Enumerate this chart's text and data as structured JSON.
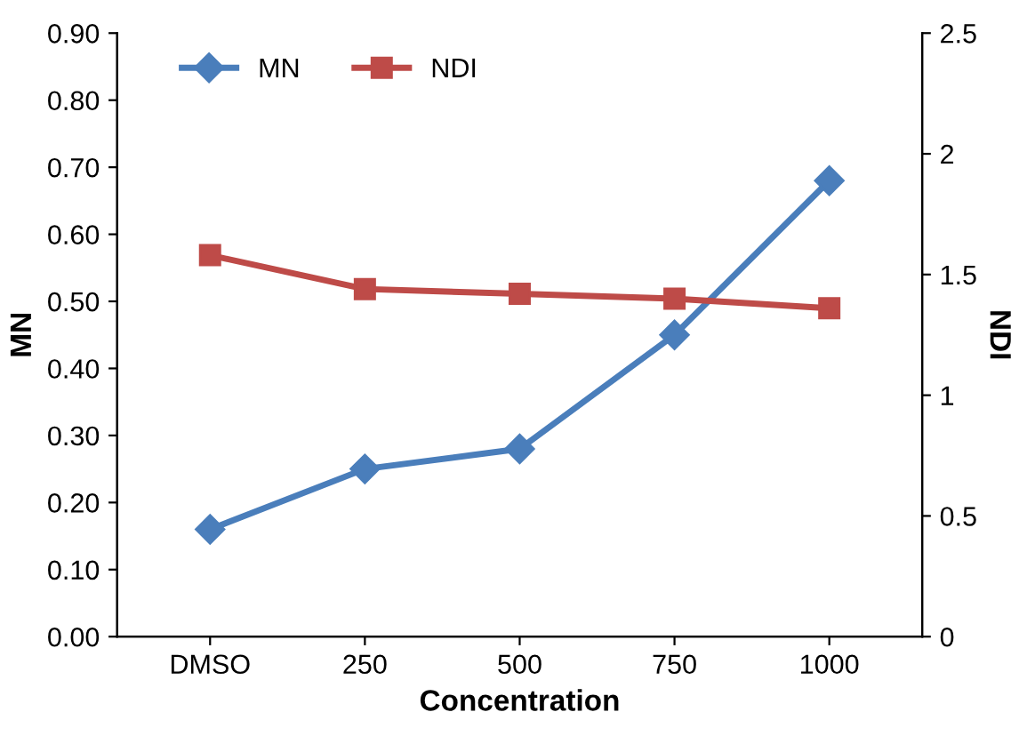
{
  "chart_data": {
    "type": "line",
    "xlabel": "Concentration",
    "ylabel": "MN",
    "y2label": "NDI",
    "categories": [
      "DMSO",
      "250",
      "500",
      "750",
      "1000"
    ],
    "series": [
      {
        "name": "MN",
        "color": "#4a7ebb",
        "values": [
          0.16,
          0.25,
          0.28,
          0.45,
          0.68
        ],
        "marker": "diamond"
      },
      {
        "name": "NDI",
        "color": "#be4b48",
        "values": [
          1.58,
          1.44,
          1.42,
          1.4,
          1.36
        ],
        "marker": "square",
        "axis": "y2"
      }
    ],
    "ylim": [
      0,
      0.9
    ],
    "yticks": [
      {
        "value": 0,
        "label": "0.00"
      },
      {
        "value": 0.1,
        "label": "0.10"
      },
      {
        "value": 0.2,
        "label": "0.20"
      },
      {
        "value": 0.3,
        "label": "0.30"
      },
      {
        "value": 0.4,
        "label": "0.40"
      },
      {
        "value": 0.5,
        "label": "0.50"
      },
      {
        "value": 0.6,
        "label": "0.60"
      },
      {
        "value": 0.7,
        "label": "0.70"
      },
      {
        "value": 0.8,
        "label": "0.80"
      },
      {
        "value": 0.9,
        "label": "0.90"
      }
    ],
    "y2lim": [
      0,
      2.5
    ],
    "y2ticks": [
      0,
      0.5,
      1,
      1.5,
      2,
      2.5
    ],
    "legend": "top left",
    "grid": false
  }
}
